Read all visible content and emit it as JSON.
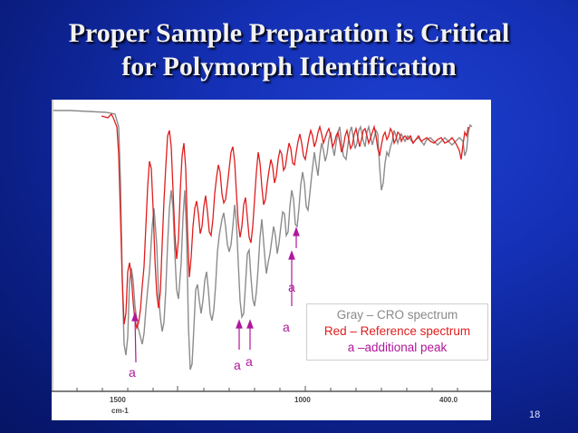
{
  "slide": {
    "title_line1": "Proper Sample Preparation is Critical",
    "title_line2": "for Polymorph Identification",
    "page_number": "18"
  },
  "legend": {
    "gray": "Gray – CRO spectrum",
    "red": "Red – Reference spectrum",
    "additional": "a –additional peak"
  },
  "axis": {
    "unit_label": "cm-1",
    "ticks": [
      "1500",
      "1000",
      "400.0"
    ]
  },
  "annotations": [
    "a",
    "a",
    "a",
    "a",
    "a",
    "a"
  ],
  "colors": {
    "background": "#1430b5",
    "title": "#f2f2f2",
    "gray_spectrum": "#8c8c8c",
    "red_spectrum": "#e01d1d",
    "annotation": "#b0179b"
  }
}
